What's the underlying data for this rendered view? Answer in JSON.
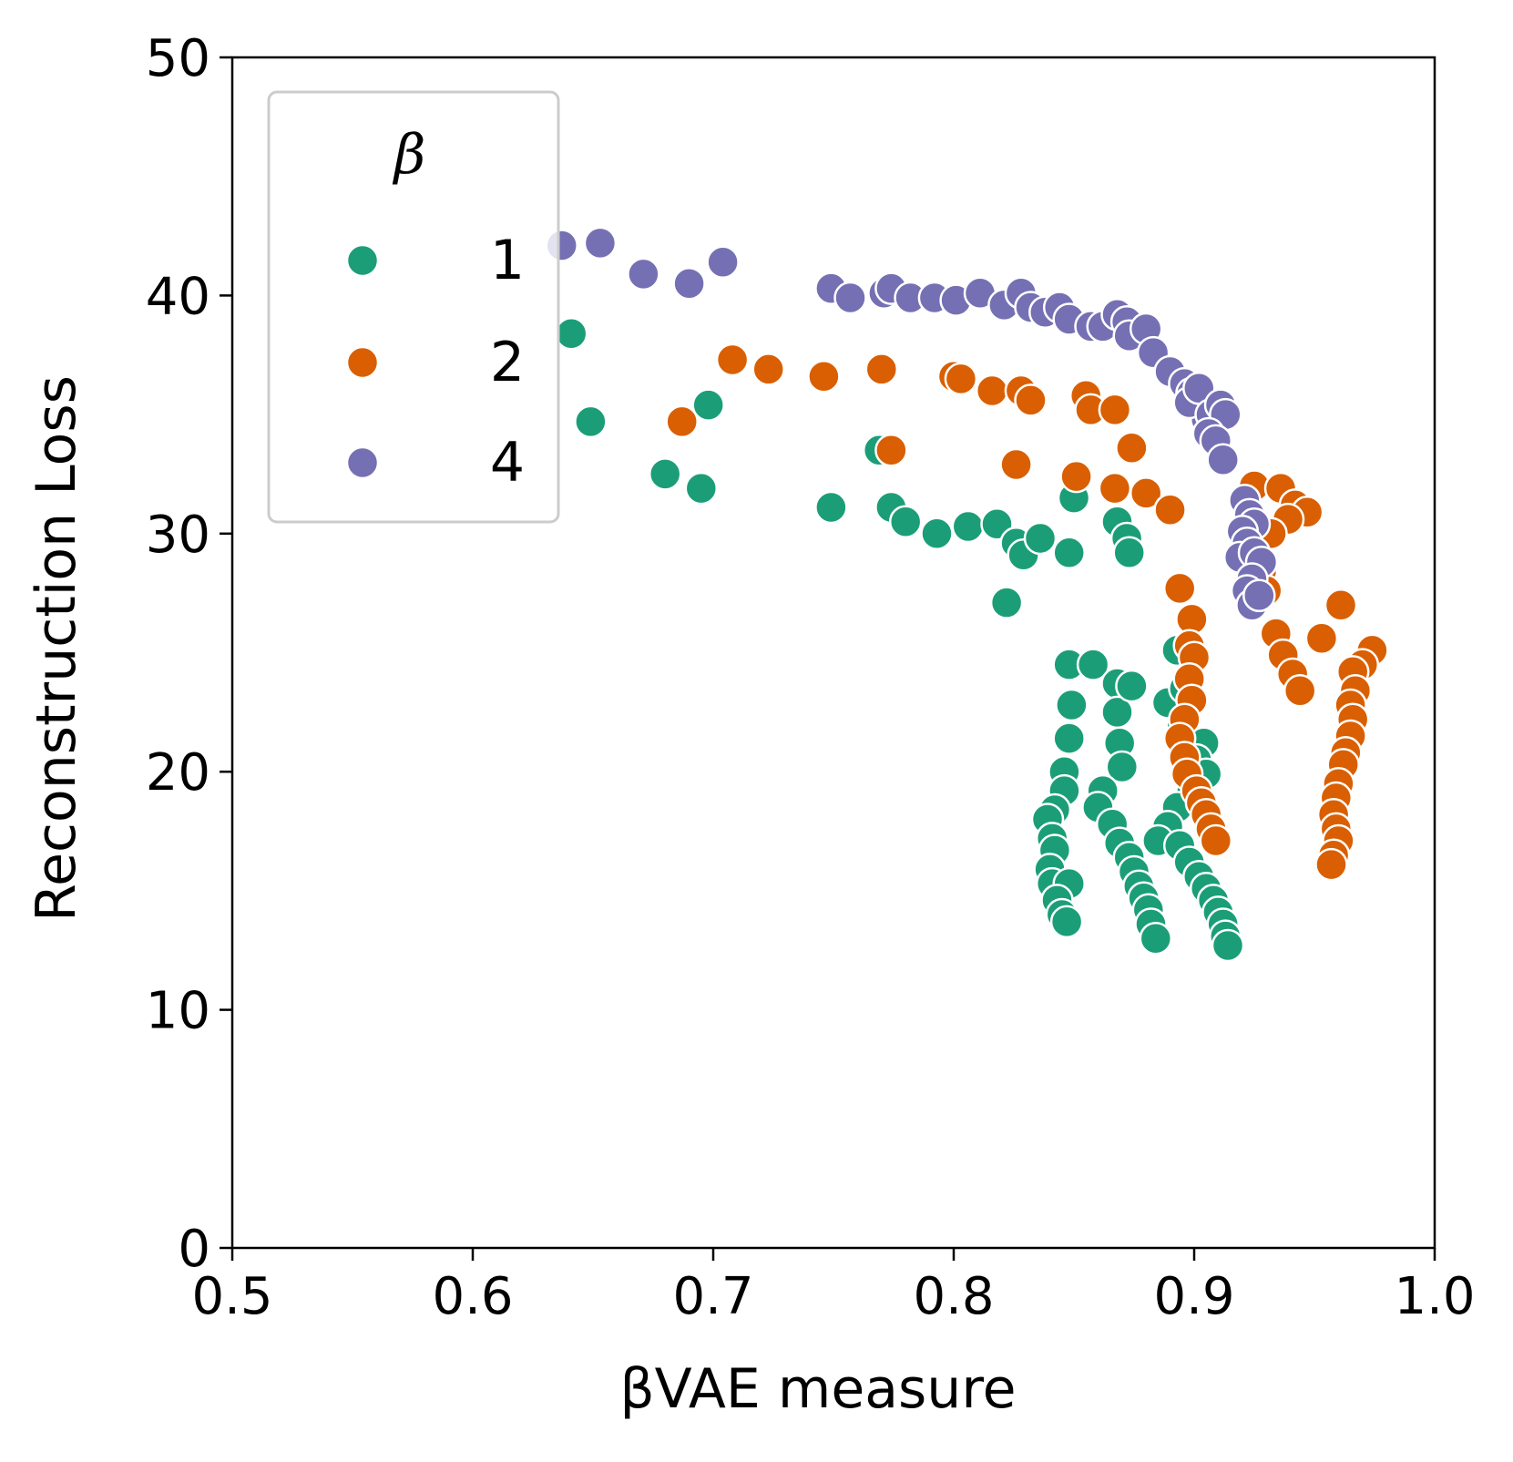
{
  "chart_data": {
    "type": "scatter",
    "title": "",
    "xlabel": "βVAE measure",
    "ylabel": "Reconstruction Loss",
    "xlim": [
      0.5,
      1.0
    ],
    "ylim": [
      0,
      50
    ],
    "xticks": [
      0.5,
      0.6,
      0.7,
      0.8,
      0.9,
      1.0
    ],
    "xtick_labels": [
      "0.5",
      "0.6",
      "0.7",
      "0.8",
      "0.9",
      "1.0"
    ],
    "yticks": [
      0,
      10,
      20,
      30,
      40,
      50
    ],
    "ytick_labels": [
      "0",
      "10",
      "20",
      "30",
      "40",
      "50"
    ],
    "grid": false,
    "legend": {
      "title": "β",
      "location": "top-left"
    },
    "series": [
      {
        "name": "1",
        "color": "#1b9e77",
        "points": [
          [
            0.641,
            38.4
          ],
          [
            0.649,
            34.7
          ],
          [
            0.698,
            35.4
          ],
          [
            0.68,
            32.5
          ],
          [
            0.695,
            31.9
          ],
          [
            0.749,
            31.1
          ],
          [
            0.769,
            33.5
          ],
          [
            0.774,
            31.1
          ],
          [
            0.78,
            30.5
          ],
          [
            0.793,
            30.0
          ],
          [
            0.806,
            30.3
          ],
          [
            0.818,
            30.4
          ],
          [
            0.826,
            29.6
          ],
          [
            0.829,
            29.1
          ],
          [
            0.836,
            29.8
          ],
          [
            0.848,
            29.2
          ],
          [
            0.822,
            27.1
          ],
          [
            0.85,
            31.5
          ],
          [
            0.868,
            30.5
          ],
          [
            0.872,
            29.8
          ],
          [
            0.873,
            29.2
          ],
          [
            0.848,
            24.5
          ],
          [
            0.849,
            22.8
          ],
          [
            0.848,
            21.4
          ],
          [
            0.846,
            20.0
          ],
          [
            0.846,
            19.2
          ],
          [
            0.842,
            18.4
          ],
          [
            0.839,
            18.0
          ],
          [
            0.841,
            17.2
          ],
          [
            0.842,
            16.7
          ],
          [
            0.84,
            15.9
          ],
          [
            0.841,
            15.3
          ],
          [
            0.848,
            15.3
          ],
          [
            0.843,
            14.6
          ],
          [
            0.845,
            14.0
          ],
          [
            0.847,
            13.7
          ],
          [
            0.858,
            24.5
          ],
          [
            0.868,
            23.7
          ],
          [
            0.868,
            22.5
          ],
          [
            0.869,
            21.2
          ],
          [
            0.87,
            20.2
          ],
          [
            0.862,
            19.2
          ],
          [
            0.86,
            18.5
          ],
          [
            0.866,
            17.8
          ],
          [
            0.869,
            17.0
          ],
          [
            0.873,
            16.4
          ],
          [
            0.875,
            15.8
          ],
          [
            0.877,
            15.2
          ],
          [
            0.879,
            14.7
          ],
          [
            0.881,
            14.2
          ],
          [
            0.882,
            13.6
          ],
          [
            0.884,
            13.0
          ],
          [
            0.874,
            23.6
          ],
          [
            0.889,
            22.9
          ],
          [
            0.893,
            25.1
          ],
          [
            0.896,
            23.5
          ],
          [
            0.895,
            21.9
          ],
          [
            0.904,
            21.2
          ],
          [
            0.901,
            20.5
          ],
          [
            0.905,
            19.9
          ],
          [
            0.899,
            19.2
          ],
          [
            0.893,
            18.5
          ],
          [
            0.889,
            17.7
          ],
          [
            0.885,
            17.1
          ],
          [
            0.894,
            16.9
          ],
          [
            0.898,
            16.2
          ],
          [
            0.902,
            15.6
          ],
          [
            0.905,
            15.1
          ],
          [
            0.908,
            14.6
          ],
          [
            0.91,
            14.1
          ],
          [
            0.912,
            13.6
          ],
          [
            0.913,
            13.1
          ],
          [
            0.914,
            12.7
          ]
        ]
      },
      {
        "name": "2",
        "color": "#d95f02",
        "points": [
          [
            0.708,
            37.3
          ],
          [
            0.723,
            36.9
          ],
          [
            0.746,
            36.6
          ],
          [
            0.77,
            36.9
          ],
          [
            0.687,
            34.7
          ],
          [
            0.774,
            33.5
          ],
          [
            0.8,
            36.6
          ],
          [
            0.803,
            36.5
          ],
          [
            0.816,
            36.0
          ],
          [
            0.828,
            36.0
          ],
          [
            0.832,
            35.6
          ],
          [
            0.855,
            35.8
          ],
          [
            0.857,
            35.2
          ],
          [
            0.867,
            35.2
          ],
          [
            0.826,
            32.9
          ],
          [
            0.851,
            32.4
          ],
          [
            0.867,
            31.9
          ],
          [
            0.88,
            31.7
          ],
          [
            0.874,
            33.6
          ],
          [
            0.89,
            31.0
          ],
          [
            0.894,
            27.7
          ],
          [
            0.899,
            26.4
          ],
          [
            0.898,
            25.3
          ],
          [
            0.9,
            24.8
          ],
          [
            0.898,
            23.9
          ],
          [
            0.899,
            23.0
          ],
          [
            0.896,
            22.2
          ],
          [
            0.894,
            21.4
          ],
          [
            0.896,
            20.6
          ],
          [
            0.897,
            19.9
          ],
          [
            0.901,
            19.2
          ],
          [
            0.903,
            18.7
          ],
          [
            0.905,
            18.2
          ],
          [
            0.907,
            17.6
          ],
          [
            0.909,
            17.1
          ],
          [
            0.925,
            32.0
          ],
          [
            0.936,
            31.9
          ],
          [
            0.942,
            31.2
          ],
          [
            0.947,
            30.9
          ],
          [
            0.939,
            30.6
          ],
          [
            0.932,
            30.0
          ],
          [
            0.928,
            28.4
          ],
          [
            0.93,
            27.6
          ],
          [
            0.934,
            25.8
          ],
          [
            0.937,
            24.9
          ],
          [
            0.941,
            24.1
          ],
          [
            0.944,
            23.4
          ],
          [
            0.953,
            25.6
          ],
          [
            0.961,
            27.0
          ],
          [
            0.974,
            25.1
          ],
          [
            0.97,
            24.5
          ],
          [
            0.966,
            24.2
          ],
          [
            0.967,
            23.4
          ],
          [
            0.965,
            22.8
          ],
          [
            0.966,
            22.2
          ],
          [
            0.965,
            21.5
          ],
          [
            0.963,
            20.8
          ],
          [
            0.962,
            20.3
          ],
          [
            0.96,
            19.5
          ],
          [
            0.959,
            18.9
          ],
          [
            0.958,
            18.2
          ],
          [
            0.959,
            17.6
          ],
          [
            0.96,
            17.1
          ],
          [
            0.958,
            16.5
          ],
          [
            0.957,
            16.1
          ]
        ]
      },
      {
        "name": "4",
        "color": "#7570b3",
        "points": [
          [
            0.637,
            42.1
          ],
          [
            0.653,
            42.2
          ],
          [
            0.671,
            40.9
          ],
          [
            0.69,
            40.5
          ],
          [
            0.704,
            41.4
          ],
          [
            0.749,
            40.3
          ],
          [
            0.757,
            39.9
          ],
          [
            0.771,
            40.1
          ],
          [
            0.774,
            40.3
          ],
          [
            0.782,
            39.9
          ],
          [
            0.792,
            39.9
          ],
          [
            0.801,
            39.8
          ],
          [
            0.811,
            40.1
          ],
          [
            0.821,
            39.6
          ],
          [
            0.828,
            40.1
          ],
          [
            0.832,
            39.5
          ],
          [
            0.838,
            39.3
          ],
          [
            0.844,
            39.5
          ],
          [
            0.848,
            39.0
          ],
          [
            0.857,
            38.7
          ],
          [
            0.862,
            38.7
          ],
          [
            0.868,
            39.2
          ],
          [
            0.872,
            38.9
          ],
          [
            0.873,
            38.3
          ],
          [
            0.88,
            38.6
          ],
          [
            0.883,
            37.6
          ],
          [
            0.89,
            36.8
          ],
          [
            0.896,
            36.3
          ],
          [
            0.899,
            35.9
          ],
          [
            0.903,
            35.3
          ],
          [
            0.905,
            34.8
          ],
          [
            0.898,
            35.5
          ],
          [
            0.902,
            36.1
          ],
          [
            0.907,
            35.0
          ],
          [
            0.911,
            35.4
          ],
          [
            0.913,
            35.0
          ],
          [
            0.906,
            34.2
          ],
          [
            0.909,
            33.9
          ],
          [
            0.912,
            33.1
          ],
          [
            0.921,
            31.4
          ],
          [
            0.923,
            30.8
          ],
          [
            0.925,
            30.4
          ],
          [
            0.92,
            30.1
          ],
          [
            0.922,
            29.6
          ],
          [
            0.919,
            29.0
          ],
          [
            0.925,
            29.2
          ],
          [
            0.928,
            28.8
          ],
          [
            0.924,
            28.1
          ],
          [
            0.922,
            27.6
          ],
          [
            0.924,
            27.0
          ],
          [
            0.927,
            27.4
          ]
        ]
      }
    ]
  }
}
